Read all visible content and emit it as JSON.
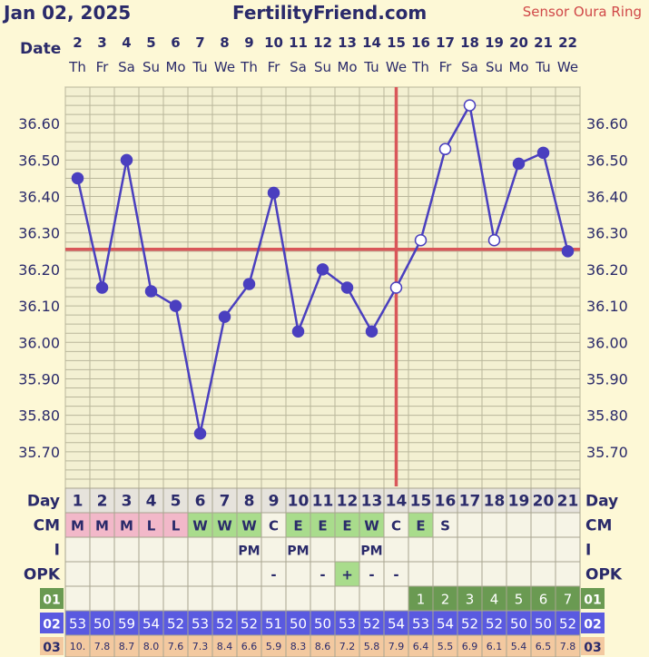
{
  "header": {
    "date": "Jan 02, 2025",
    "site": "FertilityFriend.com",
    "sensor": "Sensor Oura Ring"
  },
  "labels": {
    "date": "Date",
    "day": "Day",
    "cm": "CM",
    "i": "I",
    "opk": "OPK",
    "r01": "01",
    "r02": "02",
    "r03": "03"
  },
  "chart_data": {
    "type": "line",
    "x": [
      "2",
      "3",
      "4",
      "5",
      "6",
      "7",
      "8",
      "9",
      "10",
      "11",
      "12",
      "13",
      "14",
      "15",
      "16",
      "17",
      "18",
      "19",
      "20",
      "21",
      "22"
    ],
    "weekdays": [
      "Th",
      "Fr",
      "Sa",
      "Su",
      "Mo",
      "Tu",
      "We",
      "Th",
      "Fr",
      "Sa",
      "Su",
      "Mo",
      "Tu",
      "We",
      "Th",
      "Fr",
      "Sa",
      "Su",
      "Mo",
      "Tu",
      "We"
    ],
    "series": [
      {
        "values": [
          36.45,
          36.15,
          36.5,
          36.14,
          36.1,
          35.75,
          36.07,
          36.16,
          36.41,
          36.03,
          36.2,
          36.15,
          36.03,
          36.15,
          36.28,
          36.53,
          36.65,
          36.28,
          36.49,
          36.52,
          36.25
        ]
      }
    ],
    "open_points": [
      13,
      14,
      15,
      16,
      17
    ],
    "ylim": [
      35.6,
      36.7
    ],
    "yticks": [
      "35.70",
      "35.80",
      "35.90",
      "36.00",
      "36.10",
      "36.20",
      "36.30",
      "36.40",
      "36.50",
      "36.60"
    ],
    "coverline": 36.255,
    "ovulation_index": 13,
    "line_color": "#4a3fbf",
    "coverline_color": "#d9575a"
  },
  "table": {
    "days": [
      "1",
      "2",
      "3",
      "4",
      "5",
      "6",
      "7",
      "8",
      "9",
      "10",
      "11",
      "12",
      "13",
      "14",
      "15",
      "16",
      "17",
      "18",
      "19",
      "20",
      "21"
    ],
    "cm": [
      "M",
      "M",
      "M",
      "L",
      "L",
      "W",
      "W",
      "W",
      "C",
      "E",
      "E",
      "E",
      "W",
      "C",
      "E",
      "S",
      "",
      "",
      "",
      "",
      ""
    ],
    "i": [
      "",
      "",
      "",
      "",
      "",
      "",
      "",
      "PM",
      "",
      "PM",
      "",
      "",
      "PM",
      "",
      "",
      "",
      "",
      "",
      "",
      "",
      ""
    ],
    "opk": [
      "",
      "",
      "",
      "",
      "",
      "",
      "",
      "",
      "-",
      "",
      "-",
      "+",
      "-",
      "-",
      "",
      "",
      "",
      "",
      "",
      "",
      ""
    ],
    "r01": [
      "",
      "",
      "",
      "",
      "",
      "",
      "",
      "",
      "",
      "",
      "",
      "",
      "",
      "",
      "1",
      "2",
      "3",
      "4",
      "5",
      "6",
      "7"
    ],
    "r02": [
      "53",
      "50",
      "59",
      "54",
      "52",
      "53",
      "52",
      "52",
      "51",
      "50",
      "50",
      "53",
      "52",
      "54",
      "53",
      "54",
      "52",
      "52",
      "50",
      "50",
      "52"
    ],
    "r03": [
      "10.",
      "7.8",
      "8.7",
      "8.0",
      "7.6",
      "7.3",
      "8.4",
      "6.6",
      "5.9",
      "8.3",
      "8.6",
      "7.2",
      "5.8",
      "7.9",
      "6.4",
      "5.5",
      "6.9",
      "6.1",
      "5.4",
      "6.5",
      "7.8"
    ]
  }
}
